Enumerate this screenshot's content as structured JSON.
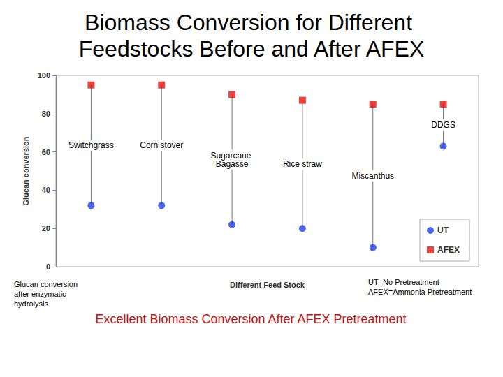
{
  "chart_data": {
    "type": "scatter",
    "title": "Biomass Conversion for Different Feedstocks Before and After AFEX",
    "x_label": "Different Feed Stock",
    "y_label": "Glucan conversion",
    "categories": [
      "Switchgrass",
      "Corn stover",
      "Sugarcane Bagasse",
      "Rice straw",
      "Miscanthus",
      "DDGS"
    ],
    "series": [
      {
        "name": "UT",
        "color": "#1f3fe6",
        "marker": "circle",
        "values": [
          32,
          32,
          22,
          20,
          10,
          63
        ]
      },
      {
        "name": "AFEX",
        "color": "#e3140f",
        "marker": "square",
        "values": [
          95,
          95,
          90,
          87,
          85,
          85
        ]
      }
    ],
    "ylim": [
      0,
      100
    ],
    "yticks": [
      0,
      20,
      40,
      60,
      80,
      100
    ],
    "grid": false,
    "legend": "lower right",
    "tick_labels": "y",
    "annotations": [
      "Glucan conversion after enzymatic hydrolysis",
      "UT=No Pretreatment",
      "AFEX=Ammonia Pretreatment"
    ],
    "caption": "Excellent Biomass Conversion After AFEX Pretreatment"
  }
}
